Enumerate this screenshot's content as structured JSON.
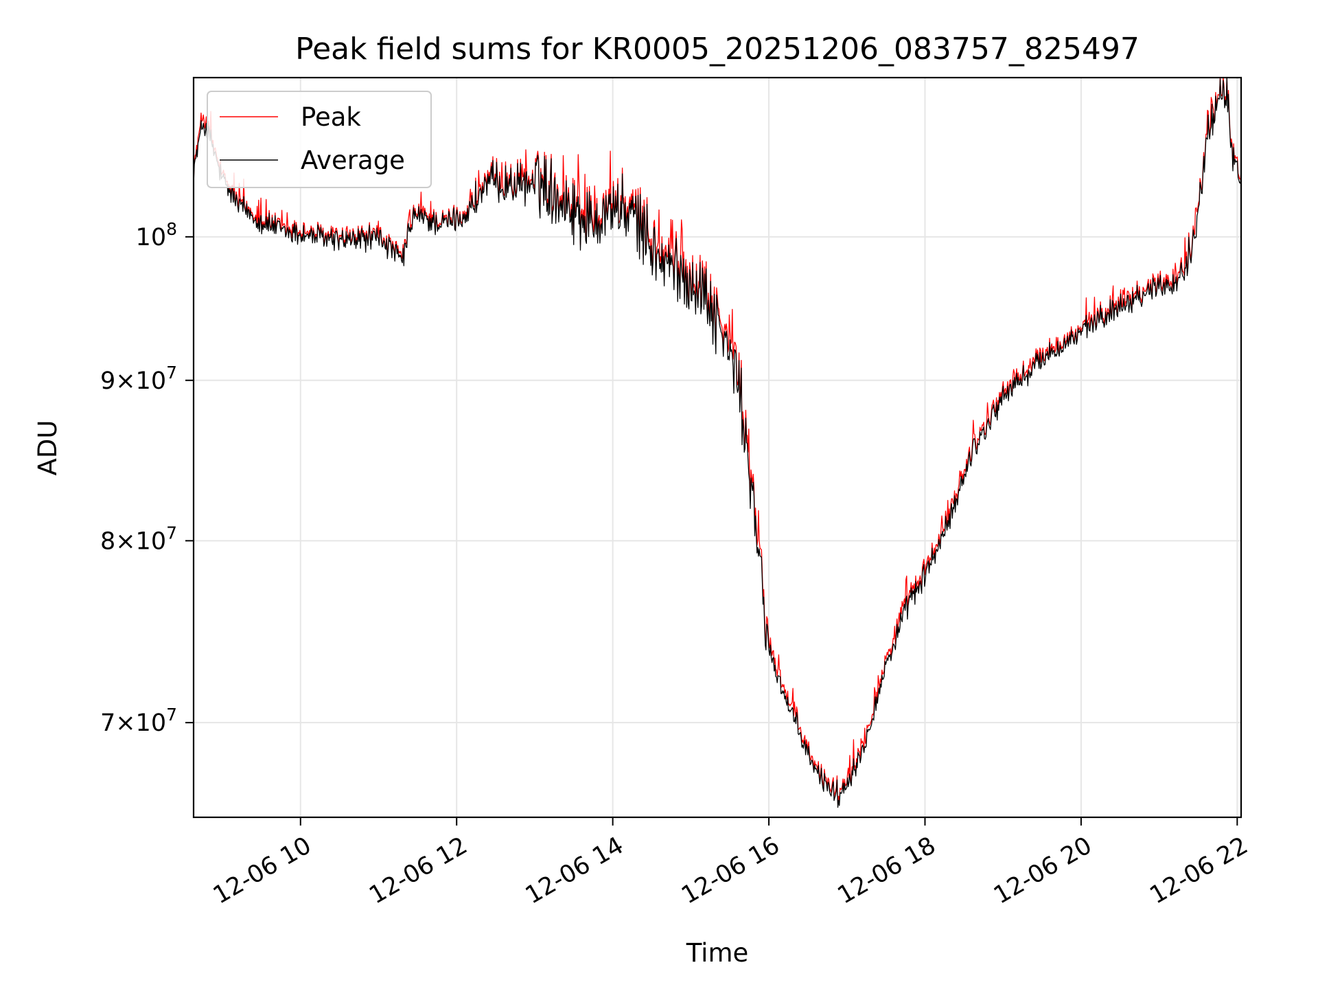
{
  "colors": {
    "peak": "#ff0000",
    "average": "#000000",
    "grid": "#e6e6e6",
    "axis": "#000000",
    "background": "#ffffff"
  },
  "chart_data": {
    "type": "line",
    "title": "Peak field sums for KR0005_20251206_083757_825497",
    "xlabel": "Time",
    "ylabel": "ADU",
    "yscale": "log",
    "grid": true,
    "legend_position": "top-left",
    "x_unit": "hours",
    "xlim": [
      8.63,
      22.05
    ],
    "ylim": [
      65300000,
      112400000
    ],
    "x_ticks": [
      {
        "value": 10,
        "label": "12-06 10"
      },
      {
        "value": 12,
        "label": "12-06 12"
      },
      {
        "value": 14,
        "label": "12-06 14"
      },
      {
        "value": 16,
        "label": "12-06 16"
      },
      {
        "value": 18,
        "label": "12-06 18"
      },
      {
        "value": 20,
        "label": "12-06 20"
      },
      {
        "value": 22,
        "label": "12-06 22"
      }
    ],
    "y_ticks": [
      {
        "value": 70000000,
        "mantissa": "7",
        "exp": "7"
      },
      {
        "value": 80000000,
        "mantissa": "8",
        "exp": "7"
      },
      {
        "value": 90000000,
        "mantissa": "9",
        "exp": "7"
      },
      {
        "value": 100000000,
        "mantissa": "",
        "exp": "8"
      }
    ],
    "series": [
      {
        "name": "Peak",
        "x": [
          8.63,
          8.75,
          8.85,
          9.0,
          9.2,
          9.5,
          9.8,
          10.2,
          10.6,
          11.0,
          11.2,
          11.3,
          11.45,
          11.8,
          12.1,
          12.4,
          12.8,
          13.1,
          13.4,
          13.7,
          14.0,
          14.3,
          14.6,
          14.9,
          15.2,
          15.4,
          15.6,
          15.75,
          16.0,
          16.3,
          16.6,
          16.9,
          17.2,
          17.5,
          17.8,
          18.0,
          18.3,
          18.6,
          19.0,
          19.5,
          20.0,
          20.5,
          21.0,
          21.2,
          21.4,
          21.6,
          21.85,
          21.95,
          22.05
        ],
        "values": [
          105200000,
          109500000,
          107600000,
          104500000,
          102600000,
          101300000,
          100600000,
          100200000,
          99900000,
          100200000,
          99000000,
          98500000,
          101800000,
          101100000,
          101700000,
          104300000,
          104200000,
          104400000,
          103000000,
          101500000,
          102700000,
          101800000,
          98800000,
          97800000,
          96300000,
          93700000,
          90700000,
          84800000,
          74200000,
          70600000,
          67700000,
          66500000,
          68800000,
          73300000,
          76800000,
          78300000,
          81300000,
          85700000,
          89200000,
          91700000,
          93400000,
          95400000,
          96800000,
          97000000,
          98800000,
          107400000,
          112100000,
          106200000,
          104700000
        ]
      },
      {
        "name": "Average",
        "x": [
          8.63,
          8.75,
          8.85,
          9.0,
          9.2,
          9.5,
          9.8,
          10.2,
          10.6,
          11.0,
          11.2,
          11.3,
          11.45,
          11.8,
          12.1,
          12.4,
          12.8,
          13.1,
          13.4,
          13.7,
          14.0,
          14.3,
          14.6,
          14.9,
          15.2,
          15.4,
          15.6,
          15.75,
          16.0,
          16.3,
          16.6,
          16.9,
          17.2,
          17.5,
          17.8,
          18.0,
          18.3,
          18.6,
          19.0,
          19.5,
          20.0,
          20.5,
          21.0,
          21.2,
          21.4,
          21.6,
          21.85,
          21.95,
          22.05
        ],
        "values": [
          105000000,
          108800000,
          107300000,
          104200000,
          102400000,
          101100000,
          100400000,
          100000000,
          99700000,
          100000000,
          98800000,
          98200000,
          101600000,
          100900000,
          101500000,
          104000000,
          103900000,
          104100000,
          102600000,
          101100000,
          102300000,
          101300000,
          98300000,
          97300000,
          95800000,
          93200000,
          90200000,
          84300000,
          73800000,
          70300000,
          67500000,
          66300000,
          68600000,
          73000000,
          76500000,
          78000000,
          81000000,
          85400000,
          88900000,
          91400000,
          93200000,
          95100000,
          96500000,
          96600000,
          98500000,
          107100000,
          111800000,
          105900000,
          104400000
        ]
      }
    ]
  }
}
